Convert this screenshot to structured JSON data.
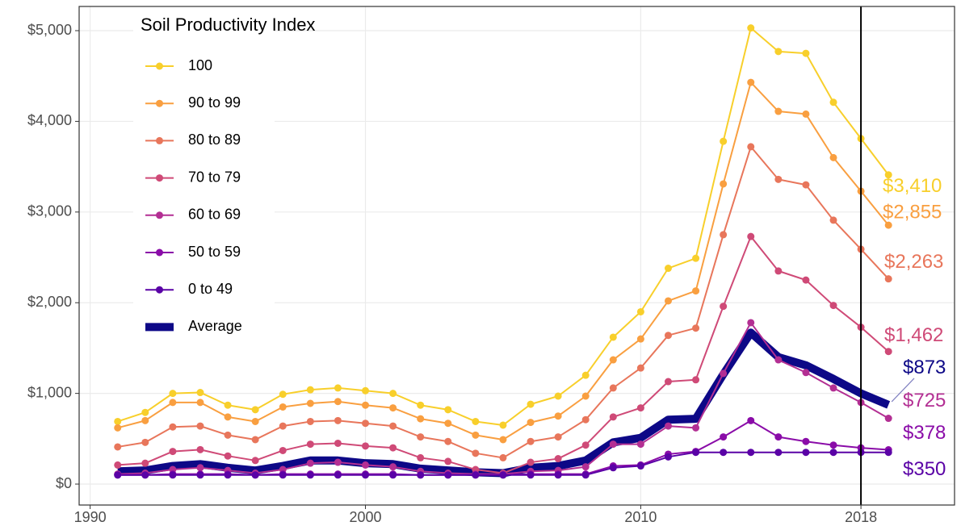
{
  "chart_data": {
    "type": "line",
    "legend_title": "Soil Productivity Index",
    "x": [
      1991,
      1992,
      1993,
      1994,
      1995,
      1996,
      1997,
      1998,
      1999,
      2000,
      2001,
      2002,
      2003,
      2004,
      2005,
      2006,
      2007,
      2008,
      2009,
      2010,
      2011,
      2012,
      2013,
      2014,
      2015,
      2016,
      2017,
      2018,
      2019
    ],
    "series": [
      {
        "name": "100",
        "color": "#f8cf2b",
        "values": [
          690,
          790,
          1000,
          1010,
          870,
          820,
          990,
          1040,
          1060,
          1030,
          1000,
          870,
          820,
          690,
          650,
          880,
          970,
          1200,
          1620,
          1900,
          2380,
          2490,
          3780,
          5030,
          4770,
          4750,
          4210,
          3810,
          3410
        ],
        "end_label": "$3,410"
      },
      {
        "name": "90 to 99",
        "color": "#f99f40",
        "values": [
          620,
          700,
          900,
          900,
          740,
          690,
          850,
          890,
          910,
          870,
          840,
          720,
          670,
          540,
          490,
          680,
          750,
          970,
          1370,
          1600,
          2020,
          2130,
          3310,
          4430,
          4110,
          4080,
          3600,
          3230,
          2855
        ],
        "end_label": "$2,855"
      },
      {
        "name": "80 to 89",
        "color": "#e8765b",
        "values": [
          410,
          460,
          630,
          640,
          540,
          490,
          640,
          690,
          700,
          670,
          640,
          520,
          470,
          340,
          290,
          470,
          520,
          710,
          1060,
          1280,
          1640,
          1720,
          2750,
          3720,
          3360,
          3300,
          2910,
          2590,
          2263
        ],
        "end_label": "$2,263"
      },
      {
        "name": "70 to 79",
        "color": "#cf4a77",
        "values": [
          210,
          230,
          360,
          380,
          310,
          260,
          370,
          440,
          450,
          420,
          400,
          290,
          250,
          160,
          120,
          240,
          280,
          430,
          740,
          840,
          1130,
          1150,
          1960,
          2730,
          2350,
          2250,
          1970,
          1730,
          1462
        ],
        "end_label": "$1,462"
      },
      {
        "name": "60 to 69",
        "color": "#b32f93",
        "values": [
          110,
          120,
          160,
          180,
          150,
          120,
          160,
          230,
          240,
          210,
          190,
          140,
          120,
          110,
          110,
          140,
          150,
          190,
          440,
          440,
          640,
          620,
          1220,
          1780,
          1370,
          1230,
          1060,
          900,
          725
        ],
        "end_label": "$725"
      },
      {
        "name": "50 to 59",
        "color": "#8a0ca8",
        "values": [
          100,
          100,
          110,
          110,
          110,
          100,
          110,
          110,
          110,
          110,
          110,
          100,
          100,
          100,
          100,
          110,
          110,
          110,
          200,
          210,
          330,
          360,
          520,
          700,
          520,
          470,
          430,
          400,
          378
        ],
        "end_label": "$378"
      },
      {
        "name": "0 to 49",
        "color": "#5a02a6",
        "values": [
          100,
          100,
          100,
          100,
          100,
          100,
          100,
          100,
          100,
          100,
          100,
          100,
          100,
          100,
          100,
          100,
          100,
          100,
          180,
          200,
          300,
          350,
          350,
          350,
          350,
          350,
          350,
          350,
          350
        ],
        "end_label": "$350"
      },
      {
        "name": "Average",
        "color": "#0d0887",
        "values": [
          140,
          150,
          200,
          220,
          180,
          150,
          200,
          260,
          260,
          230,
          220,
          170,
          150,
          130,
          120,
          180,
          200,
          260,
          460,
          510,
          710,
          720,
          1210,
          1670,
          1400,
          1310,
          1160,
          1000,
          873
        ],
        "end_label": "$873"
      }
    ],
    "xlim": [
      1989.6,
      2021.4
    ],
    "xticks": [
      1990,
      2000,
      2010,
      2018
    ],
    "ylim": [
      -231,
      5267
    ],
    "yticks": [
      {
        "value": 0,
        "label": "$0"
      },
      {
        "value": 1000,
        "label": "$1,000"
      },
      {
        "value": 2000,
        "label": "$2,000"
      },
      {
        "value": 3000,
        "label": "$3,000"
      },
      {
        "value": 4000,
        "label": "$4,000"
      },
      {
        "value": 5000,
        "label": "$5,000"
      }
    ],
    "vline": 2018,
    "grid": true
  }
}
